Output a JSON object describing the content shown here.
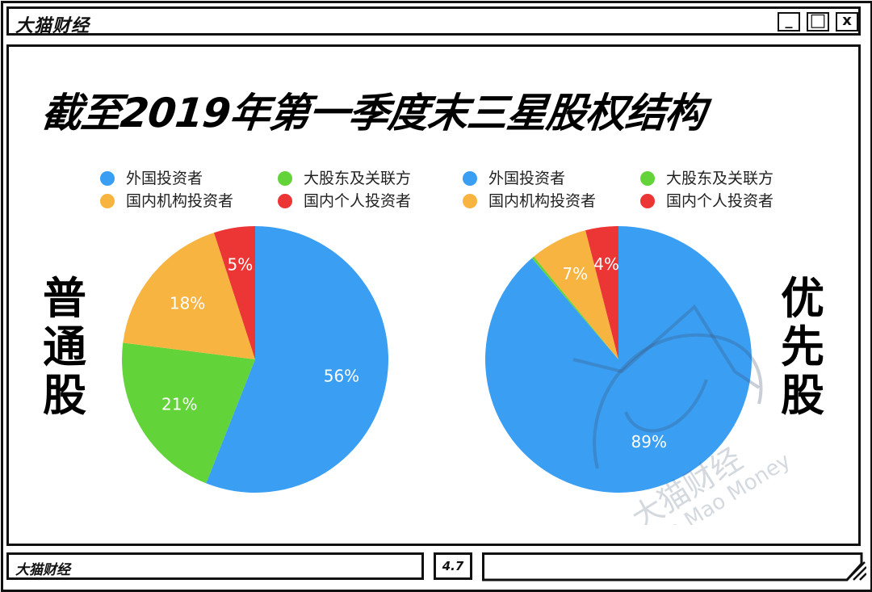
{
  "window": {
    "brand": "大猫财经",
    "controls": {
      "minimize": "_",
      "maximize": "□",
      "close": "x"
    }
  },
  "main": {
    "title": "截至2019年第一季度末三星股权结构",
    "left_label": "普通股",
    "right_label": "优先股",
    "watermark": {
      "cn": "大猫财经",
      "en": "Da Mao Money"
    }
  },
  "footer": {
    "brand": "大猫财经",
    "version": "4.7"
  },
  "colors": {
    "foreign": "#3a9ef3",
    "major": "#62d43a",
    "domestic_inst": "#f7b441",
    "domestic_indiv": "#ec3535"
  },
  "chart_data": [
    {
      "type": "pie",
      "title": "普通股",
      "legend": [
        "外国投资者",
        "大股东及关联方",
        "国内机构投资者",
        "国内个人投资者"
      ],
      "categories": [
        "外国投资者",
        "大股东及关联方",
        "国内机构投资者",
        "国内个人投资者"
      ],
      "values": [
        56,
        21,
        18,
        5
      ],
      "labels": [
        "56%",
        "21%",
        "18%",
        "5%"
      ],
      "colors": [
        "#3a9ef3",
        "#62d43a",
        "#f7b441",
        "#ec3535"
      ],
      "legend_position": "top",
      "start_angle": "12 o'clock, clockwise"
    },
    {
      "type": "pie",
      "title": "优先股",
      "legend": [
        "外国投资者",
        "大股东及关联方",
        "国内机构投资者",
        "国内个人投资者"
      ],
      "categories": [
        "外国投资者",
        "大股东及关联方",
        "国内机构投资者",
        "国内个人投资者"
      ],
      "values": [
        89,
        0.3,
        7,
        4
      ],
      "labels": [
        "89%",
        "",
        "7%",
        "4%"
      ],
      "colors": [
        "#3a9ef3",
        "#62d43a",
        "#f7b441",
        "#ec3535"
      ],
      "legend_position": "top",
      "start_angle": "12 o'clock, clockwise"
    }
  ]
}
